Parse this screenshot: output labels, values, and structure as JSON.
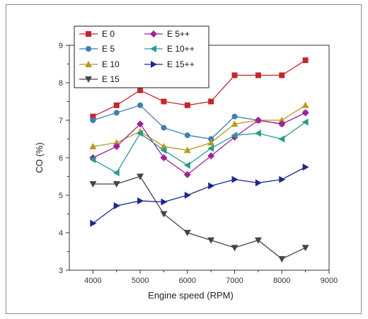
{
  "chart_data": {
    "type": "line",
    "title": "",
    "xlabel": "Engine speed (RPM)",
    "ylabel": "CO (%)",
    "xlim": [
      3500,
      9000
    ],
    "ylim": [
      3,
      9
    ],
    "x_ticks": [
      4000,
      5000,
      6000,
      7000,
      8000,
      9000
    ],
    "y_ticks": [
      3,
      4,
      5,
      6,
      7,
      8,
      9
    ],
    "x": [
      4000,
      4500,
      5000,
      5500,
      6000,
      6500,
      7000,
      7500,
      8000,
      8500
    ],
    "legend_position": "top-left",
    "grid": false,
    "series": [
      {
        "name": "E 0",
        "color": "#c0282d",
        "marker": "square",
        "values": [
          7.1,
          7.4,
          7.8,
          7.5,
          7.4,
          7.5,
          8.2,
          8.2,
          8.2,
          8.6
        ]
      },
      {
        "name": "E 5",
        "color": "#3f7fb0",
        "marker": "circle",
        "values": [
          7.0,
          7.2,
          7.4,
          6.8,
          6.6,
          6.5,
          7.1,
          7.0,
          6.9,
          7.2
        ]
      },
      {
        "name": "E 10",
        "color": "#b89a1c",
        "marker": "triangle-up",
        "values": [
          6.3,
          6.4,
          6.7,
          6.3,
          6.2,
          6.4,
          6.9,
          7.0,
          7.0,
          7.4
        ]
      },
      {
        "name": "E 15",
        "color": "#444444",
        "marker": "triangle-down",
        "values": [
          5.3,
          5.3,
          5.5,
          4.5,
          4.0,
          3.8,
          3.6,
          3.8,
          3.3,
          3.6
        ]
      },
      {
        "name": "E 5++",
        "color": "#a020a0",
        "marker": "diamond",
        "values": [
          6.0,
          6.3,
          6.9,
          6.0,
          5.55,
          6.05,
          6.55,
          7.0,
          6.9,
          7.2
        ]
      },
      {
        "name": "E 10++",
        "color": "#2a9a90",
        "marker": "triangle-left",
        "values": [
          5.95,
          5.6,
          6.65,
          6.2,
          5.8,
          6.25,
          6.6,
          6.65,
          6.5,
          6.95
        ]
      },
      {
        "name": "E 15++",
        "color": "#1c2890",
        "marker": "triangle-right",
        "values": [
          4.25,
          4.72,
          4.85,
          4.82,
          5.0,
          5.25,
          5.42,
          5.33,
          5.42,
          5.75
        ]
      }
    ]
  }
}
